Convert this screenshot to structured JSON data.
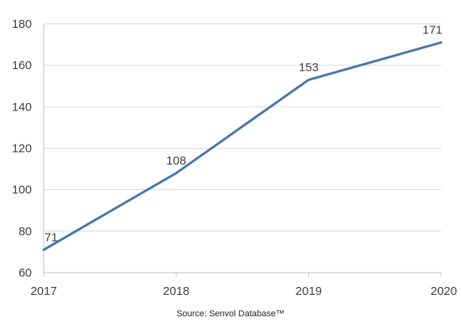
{
  "chart_data": {
    "type": "line",
    "x": [
      "2017",
      "2018",
      "2019",
      "2020"
    ],
    "series": [
      {
        "values": [
          71,
          108,
          153,
          171
        ],
        "data_labels": [
          "71",
          "108",
          "153",
          "171"
        ],
        "color": "#4a76aa"
      }
    ],
    "ylim": [
      60,
      180
    ],
    "y_ticks": [
      "60",
      "80",
      "100",
      "120",
      "140",
      "160",
      "180"
    ],
    "grid": true,
    "gridline_color": "#d9d9d9",
    "axis_color": "#bfbfbf",
    "legend": "none"
  },
  "footer": {
    "source": "Source: Senvol Database™"
  }
}
